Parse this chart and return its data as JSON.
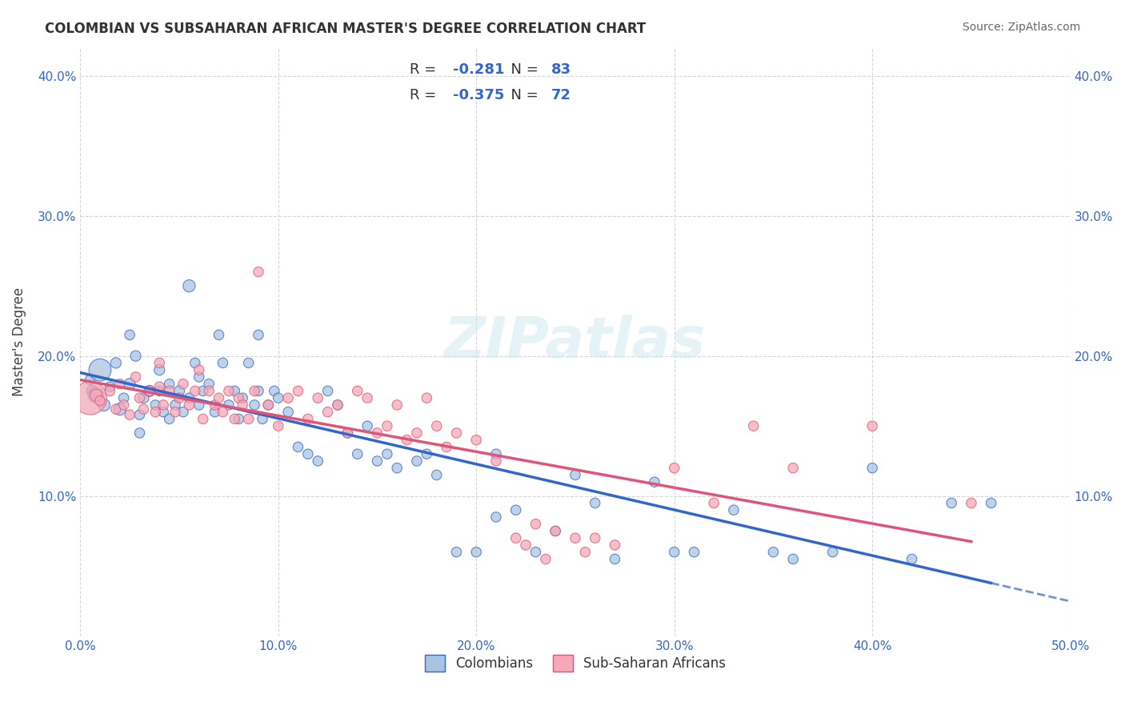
{
  "title": "COLOMBIAN VS SUBSAHARAN AFRICAN MASTER'S DEGREE CORRELATION CHART",
  "source": "Source: ZipAtlas.com",
  "ylabel": "Master's Degree",
  "xlim": [
    0.0,
    0.5
  ],
  "ylim": [
    0.0,
    0.42
  ],
  "xticks": [
    0.0,
    0.1,
    0.2,
    0.3,
    0.4,
    0.5
  ],
  "yticks": [
    0.1,
    0.2,
    0.3,
    0.4
  ],
  "xtick_labels": [
    "0.0%",
    "10.0%",
    "20.0%",
    "30.0%",
    "40.0%",
    "50.0%"
  ],
  "ytick_labels": [
    "10.0%",
    "20.0%",
    "30.0%",
    "40.0%"
  ],
  "blue_color": "#aac4e0",
  "pink_color": "#f4a8b8",
  "blue_line_color": "#3366cc",
  "pink_line_color": "#e05577",
  "blue_scatter": [
    [
      0.005,
      0.183
    ],
    [
      0.006,
      0.175
    ],
    [
      0.008,
      0.172
    ],
    [
      0.01,
      0.19
    ],
    [
      0.012,
      0.165
    ],
    [
      0.015,
      0.178
    ],
    [
      0.018,
      0.195
    ],
    [
      0.02,
      0.162
    ],
    [
      0.022,
      0.17
    ],
    [
      0.025,
      0.18
    ],
    [
      0.025,
      0.215
    ],
    [
      0.028,
      0.2
    ],
    [
      0.03,
      0.158
    ],
    [
      0.03,
      0.145
    ],
    [
      0.032,
      0.17
    ],
    [
      0.035,
      0.175
    ],
    [
      0.038,
      0.165
    ],
    [
      0.04,
      0.19
    ],
    [
      0.04,
      0.175
    ],
    [
      0.042,
      0.16
    ],
    [
      0.045,
      0.18
    ],
    [
      0.045,
      0.155
    ],
    [
      0.048,
      0.165
    ],
    [
      0.05,
      0.175
    ],
    [
      0.052,
      0.16
    ],
    [
      0.055,
      0.17
    ],
    [
      0.055,
      0.25
    ],
    [
      0.058,
      0.195
    ],
    [
      0.06,
      0.165
    ],
    [
      0.06,
      0.185
    ],
    [
      0.062,
      0.175
    ],
    [
      0.065,
      0.18
    ],
    [
      0.068,
      0.16
    ],
    [
      0.07,
      0.215
    ],
    [
      0.072,
      0.195
    ],
    [
      0.075,
      0.165
    ],
    [
      0.078,
      0.175
    ],
    [
      0.08,
      0.155
    ],
    [
      0.082,
      0.17
    ],
    [
      0.085,
      0.195
    ],
    [
      0.088,
      0.165
    ],
    [
      0.09,
      0.215
    ],
    [
      0.09,
      0.175
    ],
    [
      0.092,
      0.155
    ],
    [
      0.095,
      0.165
    ],
    [
      0.098,
      0.175
    ],
    [
      0.1,
      0.17
    ],
    [
      0.105,
      0.16
    ],
    [
      0.11,
      0.135
    ],
    [
      0.115,
      0.13
    ],
    [
      0.12,
      0.125
    ],
    [
      0.125,
      0.175
    ],
    [
      0.13,
      0.165
    ],
    [
      0.135,
      0.145
    ],
    [
      0.14,
      0.13
    ],
    [
      0.145,
      0.15
    ],
    [
      0.15,
      0.125
    ],
    [
      0.155,
      0.13
    ],
    [
      0.16,
      0.12
    ],
    [
      0.17,
      0.125
    ],
    [
      0.175,
      0.13
    ],
    [
      0.18,
      0.115
    ],
    [
      0.19,
      0.06
    ],
    [
      0.2,
      0.06
    ],
    [
      0.21,
      0.085
    ],
    [
      0.21,
      0.13
    ],
    [
      0.22,
      0.09
    ],
    [
      0.23,
      0.06
    ],
    [
      0.24,
      0.075
    ],
    [
      0.25,
      0.115
    ],
    [
      0.26,
      0.095
    ],
    [
      0.27,
      0.055
    ],
    [
      0.29,
      0.11
    ],
    [
      0.3,
      0.06
    ],
    [
      0.31,
      0.06
    ],
    [
      0.33,
      0.09
    ],
    [
      0.35,
      0.06
    ],
    [
      0.36,
      0.055
    ],
    [
      0.38,
      0.06
    ],
    [
      0.4,
      0.12
    ],
    [
      0.42,
      0.055
    ],
    [
      0.44,
      0.095
    ],
    [
      0.46,
      0.095
    ]
  ],
  "pink_scatter": [
    [
      0.005,
      0.17
    ],
    [
      0.008,
      0.172
    ],
    [
      0.01,
      0.168
    ],
    [
      0.015,
      0.175
    ],
    [
      0.018,
      0.162
    ],
    [
      0.02,
      0.18
    ],
    [
      0.022,
      0.165
    ],
    [
      0.025,
      0.158
    ],
    [
      0.028,
      0.185
    ],
    [
      0.03,
      0.17
    ],
    [
      0.032,
      0.162
    ],
    [
      0.035,
      0.175
    ],
    [
      0.038,
      0.16
    ],
    [
      0.04,
      0.195
    ],
    [
      0.04,
      0.178
    ],
    [
      0.042,
      0.165
    ],
    [
      0.045,
      0.175
    ],
    [
      0.048,
      0.16
    ],
    [
      0.05,
      0.17
    ],
    [
      0.052,
      0.18
    ],
    [
      0.055,
      0.165
    ],
    [
      0.058,
      0.175
    ],
    [
      0.06,
      0.19
    ],
    [
      0.062,
      0.155
    ],
    [
      0.065,
      0.175
    ],
    [
      0.068,
      0.165
    ],
    [
      0.07,
      0.17
    ],
    [
      0.072,
      0.16
    ],
    [
      0.075,
      0.175
    ],
    [
      0.078,
      0.155
    ],
    [
      0.08,
      0.17
    ],
    [
      0.082,
      0.165
    ],
    [
      0.085,
      0.155
    ],
    [
      0.088,
      0.175
    ],
    [
      0.09,
      0.26
    ],
    [
      0.095,
      0.165
    ],
    [
      0.1,
      0.15
    ],
    [
      0.105,
      0.17
    ],
    [
      0.11,
      0.175
    ],
    [
      0.115,
      0.155
    ],
    [
      0.12,
      0.17
    ],
    [
      0.125,
      0.16
    ],
    [
      0.13,
      0.165
    ],
    [
      0.135,
      0.145
    ],
    [
      0.14,
      0.175
    ],
    [
      0.145,
      0.17
    ],
    [
      0.15,
      0.145
    ],
    [
      0.155,
      0.15
    ],
    [
      0.16,
      0.165
    ],
    [
      0.165,
      0.14
    ],
    [
      0.17,
      0.145
    ],
    [
      0.175,
      0.17
    ],
    [
      0.18,
      0.15
    ],
    [
      0.185,
      0.135
    ],
    [
      0.19,
      0.145
    ],
    [
      0.2,
      0.14
    ],
    [
      0.21,
      0.125
    ],
    [
      0.22,
      0.07
    ],
    [
      0.225,
      0.065
    ],
    [
      0.23,
      0.08
    ],
    [
      0.235,
      0.055
    ],
    [
      0.24,
      0.075
    ],
    [
      0.25,
      0.07
    ],
    [
      0.255,
      0.06
    ],
    [
      0.26,
      0.07
    ],
    [
      0.27,
      0.065
    ],
    [
      0.3,
      0.12
    ],
    [
      0.32,
      0.095
    ],
    [
      0.34,
      0.15
    ],
    [
      0.36,
      0.12
    ],
    [
      0.4,
      0.15
    ],
    [
      0.45,
      0.095
    ]
  ],
  "blue_sizes": [
    80,
    100,
    200,
    400,
    120,
    80,
    90,
    120,
    80,
    100,
    80,
    90,
    80,
    80,
    90,
    100,
    80,
    90,
    80,
    80,
    80,
    80,
    80,
    90,
    80,
    80,
    120,
    80,
    80,
    80,
    80,
    80,
    80,
    80,
    80,
    80,
    80,
    80,
    80,
    80,
    80,
    80,
    80,
    80,
    80,
    80,
    80,
    80,
    80,
    80,
    80,
    80,
    80,
    80,
    80,
    80,
    80,
    80,
    80,
    80,
    80,
    80,
    80,
    80,
    80,
    80,
    80,
    80,
    80,
    80,
    80,
    80,
    80,
    80,
    80,
    80,
    80,
    80,
    80,
    80,
    80,
    80,
    80
  ],
  "pink_sizes": [
    900,
    120,
    80,
    80,
    80,
    80,
    80,
    80,
    80,
    80,
    80,
    80,
    80,
    80,
    80,
    80,
    80,
    80,
    80,
    80,
    80,
    80,
    80,
    80,
    80,
    80,
    80,
    80,
    80,
    80,
    80,
    80,
    80,
    80,
    80,
    80,
    80,
    80,
    80,
    80,
    80,
    80,
    80,
    80,
    80,
    80,
    80,
    80,
    80,
    80,
    80,
    80,
    80,
    80,
    80,
    80,
    80,
    80,
    80,
    80,
    80,
    80,
    80,
    80,
    80,
    80,
    80,
    80,
    80,
    80,
    80,
    80
  ],
  "watermark": "ZIPatlas",
  "background_color": "#ffffff",
  "grid_color": "#cccccc"
}
